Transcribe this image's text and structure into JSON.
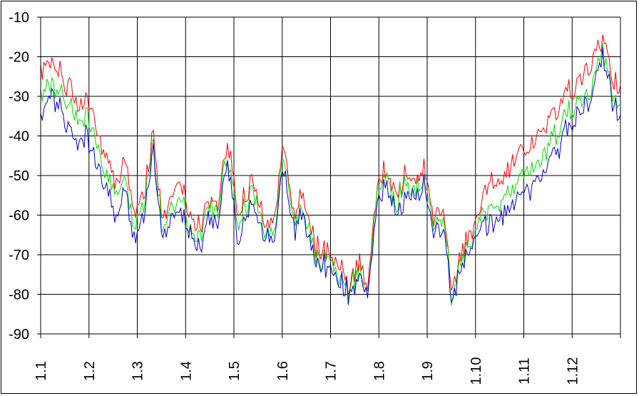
{
  "chart_data": {
    "type": "line",
    "title": "",
    "xlabel": "",
    "ylabel": "",
    "categories": [
      "1.1",
      "1.2",
      "1.3",
      "1.4",
      "1.5",
      "1.6",
      "1.7",
      "1.8",
      "1.9",
      "1.10",
      "1.11",
      "1.12"
    ],
    "ylim": [
      -90,
      -10
    ],
    "yticks": [
      -10,
      -20,
      -30,
      -40,
      -50,
      -60,
      -70,
      -80,
      -90
    ],
    "grid": true,
    "legend": "none",
    "points_per_category": 30,
    "series": [
      {
        "color": "#ff0000",
        "anchors": [
          -24,
          -22,
          -24,
          -28,
          -33,
          -30,
          -40,
          -45,
          -52,
          -48,
          -58,
          -55,
          -38,
          -60,
          -56,
          -50,
          -60,
          -63,
          -56,
          -58,
          -40,
          -60,
          -55,
          -52,
          -63,
          -60,
          -42,
          -60,
          -55,
          -65,
          -70,
          -68,
          -72,
          -78,
          -72,
          -76,
          -52,
          -48,
          -55,
          -50,
          -52,
          -48,
          -62,
          -58,
          -80,
          -70,
          -65,
          -58,
          -52,
          -50,
          -48,
          -46,
          -44,
          -40,
          -38,
          -34,
          -30,
          -28,
          -26,
          -22,
          -15,
          -25,
          -29
        ]
      },
      {
        "color": "#00dd00",
        "anchors": [
          -30,
          -27,
          -29,
          -33,
          -37,
          -35,
          -44,
          -50,
          -55,
          -52,
          -62,
          -58,
          -40,
          -63,
          -60,
          -54,
          -63,
          -66,
          -58,
          -60,
          -43,
          -63,
          -58,
          -55,
          -65,
          -62,
          -45,
          -62,
          -58,
          -67,
          -72,
          -70,
          -75,
          -79,
          -74,
          -77,
          -55,
          -50,
          -58,
          -52,
          -55,
          -50,
          -64,
          -60,
          -81,
          -72,
          -67,
          -61,
          -58,
          -56,
          -54,
          -52,
          -50,
          -47,
          -45,
          -40,
          -36,
          -33,
          -31,
          -27,
          -18,
          -28,
          -33
        ]
      },
      {
        "color": "#0000cc",
        "anchors": [
          -36,
          -29,
          -33,
          -38,
          -42,
          -40,
          -48,
          -54,
          -60,
          -56,
          -65,
          -62,
          -42,
          -65,
          -62,
          -57,
          -65,
          -68,
          -61,
          -62,
          -45,
          -66,
          -60,
          -58,
          -67,
          -64,
          -48,
          -64,
          -60,
          -69,
          -74,
          -72,
          -77,
          -80,
          -76,
          -79,
          -57,
          -52,
          -60,
          -55,
          -57,
          -52,
          -66,
          -62,
          -82,
          -74,
          -69,
          -64,
          -62,
          -60,
          -58,
          -56,
          -54,
          -51,
          -49,
          -44,
          -40,
          -37,
          -34,
          -30,
          -19,
          -30,
          -36
        ]
      }
    ]
  }
}
